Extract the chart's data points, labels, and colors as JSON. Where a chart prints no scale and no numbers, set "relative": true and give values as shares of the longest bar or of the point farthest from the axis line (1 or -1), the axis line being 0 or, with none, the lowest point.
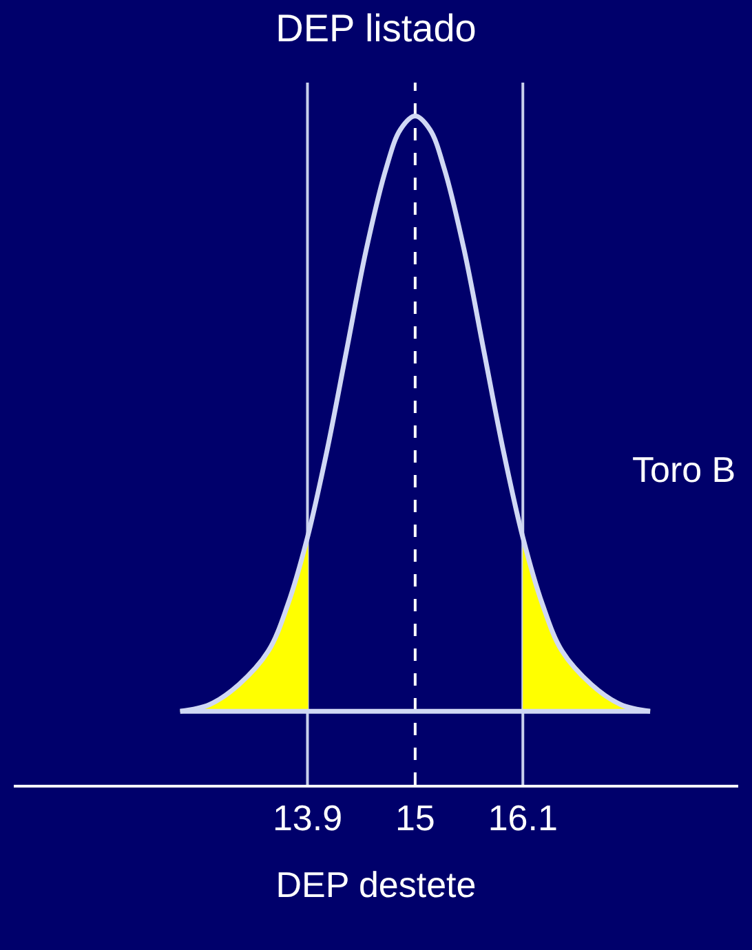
{
  "chart_data": {
    "type": "line",
    "title": "DEP listado",
    "xlabel": "DEP destete",
    "relative": true,
    "annotations": [
      "Toro B"
    ],
    "xlim": [
      10.9,
      18.3
    ],
    "xticks": [
      13.9,
      15,
      16.1
    ],
    "grid": false,
    "marker": "none",
    "line_style": "solid",
    "series": [
      {
        "color": "#d0d8f4",
        "x": [
          12.6,
          12.9,
          13.2,
          13.5,
          13.7,
          13.9,
          14.1,
          14.3,
          14.5,
          14.7,
          14.85,
          15,
          15.15,
          15.3,
          15.5,
          15.7,
          15.9,
          16.1,
          16.3,
          16.5,
          16.8,
          17.1,
          17.4
        ],
        "values": [
          0.11,
          0.12,
          0.15,
          0.2,
          0.27,
          0.37,
          0.5,
          0.65,
          0.8,
          0.92,
          0.98,
          1,
          0.98,
          0.92,
          0.8,
          0.65,
          0.5,
          0.37,
          0.27,
          0.2,
          0.15,
          0.12,
          0.11
        ]
      },
      {
        "color": "#d0d8f4",
        "x": [
          12.6,
          17.4
        ],
        "values": [
          0.11,
          0.11
        ]
      },
      {
        "type": "area",
        "color": "#ffff00",
        "x": [
          12.6,
          12.9,
          13.2,
          13.5,
          13.7,
          13.9
        ],
        "values": [
          0.11,
          0.12,
          0.15,
          0.2,
          0.27,
          0.37
        ]
      },
      {
        "type": "area",
        "color": "#ffff00",
        "x": [
          16.1,
          16.3,
          16.5,
          16.8,
          17.1,
          17.4
        ],
        "values": [
          0.37,
          0.27,
          0.2,
          0.15,
          0.12,
          0.11
        ]
      }
    ],
    "ref_lines": [
      {
        "axis": "x",
        "value": 13.9,
        "color": "#c8d0ec",
        "line_style": "solid"
      },
      {
        "axis": "x",
        "value": 15,
        "color": "#ffffff",
        "line_style": "dashed"
      },
      {
        "axis": "x",
        "value": 16.1,
        "color": "#c8d0ec",
        "line_style": "solid"
      }
    ]
  }
}
